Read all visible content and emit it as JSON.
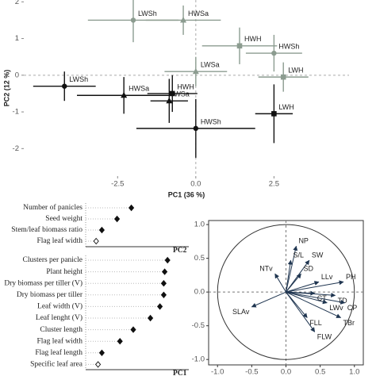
{
  "chart_data": [
    {
      "type": "scatter",
      "xlabel": "PC1 (36 %)",
      "ylabel": "PC2 (12 %)",
      "xlim": [
        -5.5,
        4.9
      ],
      "ylim": [
        -2.75,
        2.05
      ],
      "xticks": [
        {
          "value": -2.5,
          "label": "-2.5"
        },
        {
          "value": 0,
          "label": "0.0"
        },
        {
          "value": 2.5,
          "label": "2.5"
        }
      ],
      "yticks": [
        -2,
        -1,
        0,
        1,
        2
      ],
      "series": [
        {
          "color": "#8c9c90",
          "labels": [
            "LWSh",
            "HWSa",
            "HWH",
            "HWSh",
            "LWSa",
            "LWH"
          ],
          "markers": [
            "circle",
            "triangle",
            "square",
            "circle",
            "triangle",
            "square"
          ],
          "x": [
            -2.0,
            -0.4,
            1.4,
            2.5,
            0.0,
            2.8
          ],
          "y": [
            1.5,
            1.5,
            0.8,
            0.6,
            0.1,
            -0.05
          ],
          "xerr": [
            1.45,
            1.2,
            1.2,
            0.9,
            1.0,
            0.8
          ],
          "yerr": [
            0.6,
            0.4,
            0.5,
            0.5,
            0.4,
            0.4
          ]
        },
        {
          "color": "#111111",
          "labels": [
            "LWSh",
            "HWSa",
            "HWH",
            "WSa",
            "HWSh",
            "LWH"
          ],
          "markers": [
            "circle",
            "triangle",
            "square",
            "triangle",
            "circle",
            "square"
          ],
          "x": [
            -4.2,
            -2.3,
            -0.75,
            -0.85,
            0.0,
            2.5
          ],
          "y": [
            -0.3,
            -0.55,
            -0.5,
            -0.7,
            -1.45,
            -1.05
          ],
          "xerr": [
            1.0,
            1.5,
            0.8,
            0.6,
            1.9,
            0.6
          ],
          "yerr": [
            0.4,
            0.5,
            0.5,
            0.6,
            0.8,
            0.8
          ]
        }
      ]
    },
    {
      "type": "dot",
      "xlim": [
        0,
        1
      ],
      "panels": [
        {
          "title": "PC2",
          "labels": [
            "Number of panicles",
            "Seed weight",
            "Stem/leaf biomass ratio",
            "Flag leaf width"
          ],
          "values": [
            0.48,
            0.33,
            0.17,
            0.11
          ],
          "markers": [
            "filled",
            "filled",
            "filled",
            "open"
          ]
        },
        {
          "title": "PC1",
          "labels": [
            "Clusters per panicle",
            "Plant height",
            "Dry biomass per tiller (V)",
            "Dry biomass per tiller",
            "Leaf width (V)",
            "Leaf lenght (V)",
            "Cluster length",
            "Flag leaf width",
            "Flag leaf length",
            "Specific leaf area"
          ],
          "values": [
            0.86,
            0.83,
            0.82,
            0.82,
            0.78,
            0.68,
            0.5,
            0.36,
            0.17,
            0.13
          ],
          "markers": [
            "filled",
            "filled",
            "filled",
            "filled",
            "filled",
            "filled",
            "filled",
            "filled",
            "filled",
            "open"
          ]
        }
      ]
    },
    {
      "type": "biplot",
      "color": "#1f3550",
      "xlim": [
        -1.13,
        1.13
      ],
      "ylim": [
        -1.08,
        1.06
      ],
      "xticks": [
        {
          "value": -1,
          "label": "-1.0"
        },
        {
          "value": -0.5,
          "label": "-0.5"
        },
        {
          "value": 0,
          "label": "0.0"
        },
        {
          "value": 0.5,
          "label": "0.5"
        },
        {
          "value": 1,
          "label": "1.0"
        }
      ],
      "yticks": [
        {
          "value": -1,
          "label": "-1.0"
        },
        {
          "value": -0.5,
          "label": "-0.5"
        },
        {
          "value": 0,
          "label": "0.0"
        },
        {
          "value": 0.5,
          "label": "0.5"
        },
        {
          "value": 1,
          "label": "1.0"
        }
      ],
      "labels": [
        "NP",
        "SW",
        "S/L",
        "SD",
        "NTv",
        "LLv",
        "PH",
        "CT",
        "TD",
        "CP",
        "LWv",
        "TBr",
        "FLL",
        "FLW",
        "SLAv"
      ],
      "x": [
        0.15,
        0.34,
        0.07,
        0.22,
        -0.16,
        0.48,
        0.84,
        0.42,
        0.72,
        0.86,
        0.6,
        0.8,
        0.31,
        0.42,
        -0.5
      ],
      "y": [
        0.68,
        0.47,
        0.47,
        0.27,
        0.27,
        0.15,
        0.15,
        -0.02,
        -0.05,
        -0.16,
        -0.16,
        -0.38,
        -0.38,
        -0.59,
        -0.22
      ]
    }
  ]
}
